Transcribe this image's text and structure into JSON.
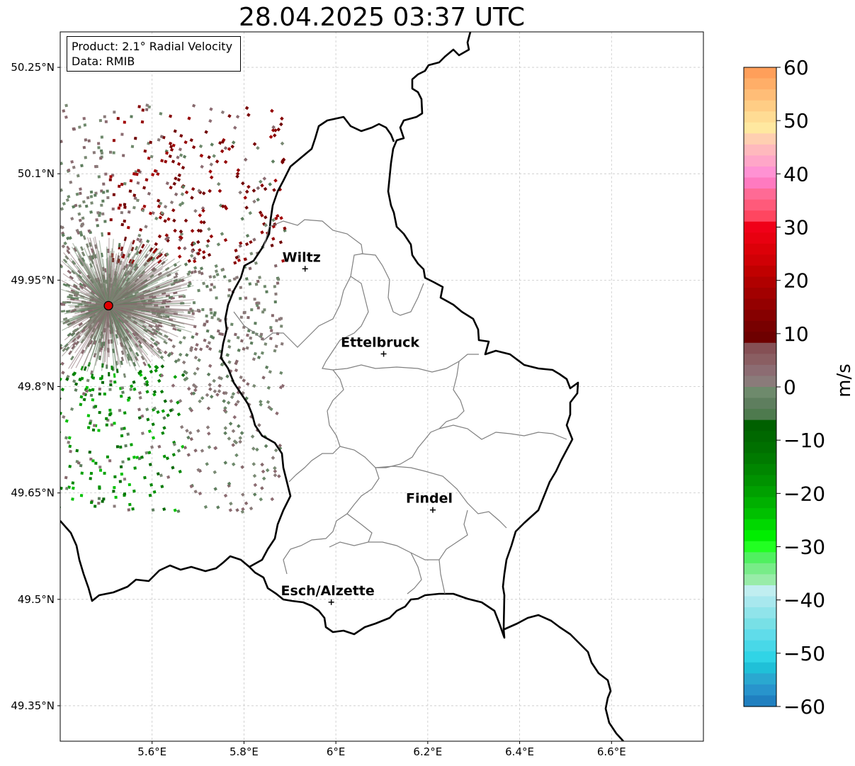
{
  "title": "28.04.2025 03:37 UTC",
  "info": {
    "product": "Product: 2.1° Radial Velocity",
    "data_source": "Data: RMIB"
  },
  "map": {
    "lon_range": [
      5.4,
      6.8
    ],
    "lat_range": [
      49.3,
      50.3
    ],
    "lon_ticks": [
      "5.6°E",
      "5.8°E",
      "6°E",
      "6.2°E",
      "6.4°E",
      "6.6°E"
    ],
    "lon_tick_values": [
      5.6,
      5.8,
      6.0,
      6.2,
      6.4,
      6.6
    ],
    "lat_ticks": [
      "50.25°N",
      "50.1°N",
      "49.95°N",
      "49.8°N",
      "49.65°N",
      "49.5°N",
      "49.35°N"
    ],
    "lat_tick_values": [
      50.25,
      50.1,
      49.95,
      49.8,
      49.65,
      49.5,
      49.35
    ],
    "grid": true,
    "radar_site": {
      "lon": 5.505,
      "lat": 49.914,
      "color": "#e00000"
    },
    "cities": [
      {
        "name": "Wiltz",
        "lon": 5.933,
        "lat": 49.966
      },
      {
        "name": "Ettelbruck",
        "lon": 6.104,
        "lat": 49.846
      },
      {
        "name": "Findel",
        "lon": 6.211,
        "lat": 49.626
      },
      {
        "name": "Esch/Alzette",
        "lon": 5.99,
        "lat": 49.496
      }
    ]
  },
  "colorbar": {
    "label": "m/s",
    "ticks": [
      "60",
      "50",
      "40",
      "30",
      "20",
      "10",
      "0",
      "−10",
      "−20",
      "−30",
      "−40",
      "−50",
      "−60"
    ],
    "tick_values": [
      60,
      50,
      40,
      30,
      20,
      10,
      0,
      -10,
      -20,
      -30,
      -40,
      -50,
      -60
    ],
    "colors": [
      "#ff9f5a",
      "#ffae68",
      "#ffbd77",
      "#ffcd85",
      "#ffdc94",
      "#ffe8a0",
      "#ffcfb1",
      "#ffb9bd",
      "#ffa6c8",
      "#ff92d3",
      "#ff7ac0",
      "#ff6a95",
      "#ff5a7a",
      "#ff4660",
      "#f00018",
      "#e80010",
      "#dc0008",
      "#d00005",
      "#c00000",
      "#b00000",
      "#a20000",
      "#940000",
      "#860000",
      "#780000",
      "#6e0000",
      "#855055",
      "#8a5e62",
      "#8c6c72",
      "#8a7b7a",
      "#6e8a6c",
      "#5e7e5e",
      "#4e7a4e",
      "#006000",
      "#006800",
      "#007000",
      "#007a00",
      "#008600",
      "#009200",
      "#00a000",
      "#00b000",
      "#00c000",
      "#00d800",
      "#00ee00",
      "#22ff22",
      "#50f060",
      "#78ec88",
      "#98eca8",
      "#c0eef0",
      "#a8e8ee",
      "#90e4ea",
      "#78e0e6",
      "#60dcea",
      "#48d8e8",
      "#30d4e6",
      "#20c0d8",
      "#2aa8d0",
      "#2894cc",
      "#2080c0"
    ]
  }
}
